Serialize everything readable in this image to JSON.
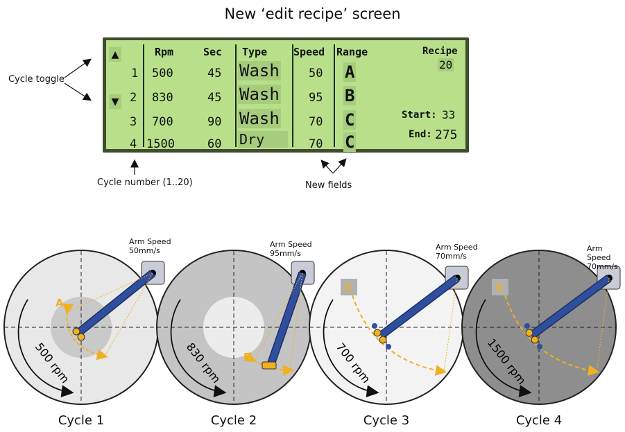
{
  "title": "New ‘edit recipe’ screen",
  "screen": {
    "headers": [
      "Rpm",
      "Sec",
      "Type",
      "Speed",
      "Range"
    ],
    "rows": [
      {
        "num": "1",
        "rpm": "500",
        "sec": "45",
        "type": "Wash",
        "speed": "50",
        "range": "A"
      },
      {
        "num": "2",
        "rpm": "830",
        "sec": "45",
        "type": "Wash",
        "speed": "95",
        "range": "B"
      },
      {
        "num": "3",
        "rpm": "700",
        "sec": "90",
        "type": "Wash",
        "speed": "70",
        "range": "C"
      },
      {
        "num": "4",
        "rpm": "1500",
        "sec": "60",
        "type": "Dry",
        "speed": "70",
        "range": "C"
      }
    ],
    "recipe_label": "Recipe",
    "recipe_value": "20",
    "start_label": "Start:",
    "start_value": "33",
    "end_label": "End:",
    "end_value": "275",
    "up_arrow": "▲",
    "down_arrow": "▼"
  },
  "annotations": {
    "cycle_toggle": "Cycle toggle",
    "cycle_number": "Cycle number (1..20)",
    "new_fields": "New fields"
  },
  "cycles": [
    {
      "label": "Cycle 1",
      "rpm": "500 rpm",
      "arm_speed_label": "Arm Speed",
      "arm_speed": "50mm/s",
      "range": "A",
      "disc_color": "#e8e8e8",
      "inner_color": "#c9c9c9"
    },
    {
      "label": "Cycle 2",
      "rpm": "830 rpm",
      "arm_speed_label": "Arm Speed",
      "arm_speed": "95mm/s",
      "range": "B",
      "disc_color": "#c4c4c4",
      "inner_color": "#ececec"
    },
    {
      "label": "Cycle 3",
      "rpm": "700 rpm",
      "arm_speed_label": "Arm Speed",
      "arm_speed": "70mm/s",
      "range": "C",
      "disc_color": "#f3f3f3",
      "inner_color": ""
    },
    {
      "label": "Cycle 4",
      "rpm": "1500 rpm",
      "arm_speed_label": "Arm Speed",
      "arm_speed": "70mm/s",
      "range": "C",
      "disc_color": "#8e8e8e",
      "inner_color": ""
    }
  ],
  "colors": {
    "lcd": "#b8e08a",
    "arm": "#2f4f9e",
    "trajectory": "#f0b020",
    "range_box": "#b0b0b0"
  }
}
